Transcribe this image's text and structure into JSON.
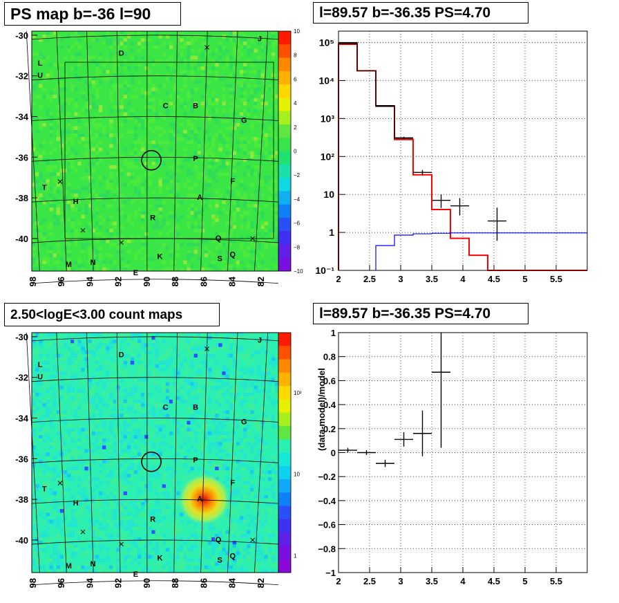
{
  "panels": {
    "ps_map_title": "PS map b=-36 l=90",
    "spectrum_title": "l=89.57 b=-36.35 PS=4.70",
    "count_map_title": "2.50<logE<3.00 count maps",
    "residual_title": "l=89.57 b=-36.35 PS=4.70"
  },
  "maps": {
    "x_ticks": [
      "98",
      "96",
      "94",
      "92",
      "90",
      "88",
      "86",
      "84",
      "82"
    ],
    "y_ticks": [
      "-30",
      "-32",
      "-34",
      "-36",
      "-38",
      "-40"
    ],
    "source_labels": [
      {
        "text": "D",
        "x": 91.8,
        "y": -31.0
      },
      {
        "text": "L",
        "x": 97.5,
        "y": -31.5
      },
      {
        "text": "U",
        "x": 97.5,
        "y": -32.1
      },
      {
        "text": "C",
        "x": 88.7,
        "y": -33.6
      },
      {
        "text": "B",
        "x": 86.6,
        "y": -33.6
      },
      {
        "text": "G",
        "x": 83.2,
        "y": -34.3
      },
      {
        "text": "J",
        "x": 82.1,
        "y": -30.3
      },
      {
        "text": "P",
        "x": 86.6,
        "y": -36.2
      },
      {
        "text": "T",
        "x": 97.2,
        "y": -37.6
      },
      {
        "text": "F",
        "x": 84.0,
        "y": -37.3
      },
      {
        "text": "H",
        "x": 95.0,
        "y": -38.3
      },
      {
        "text": "A",
        "x": 86.3,
        "y": -38.1
      },
      {
        "text": "R",
        "x": 89.6,
        "y": -39.1
      },
      {
        "text": "Q",
        "x": 85.0,
        "y": -40.1
      },
      {
        "text": "K",
        "x": 89.1,
        "y": -41.0
      },
      {
        "text": "S",
        "x": 84.9,
        "y": -41.1
      },
      {
        "text": "Q",
        "x": 84.0,
        "y": -40.9
      },
      {
        "text": "M",
        "x": 95.5,
        "y": -41.4
      },
      {
        "text": "N",
        "x": 93.8,
        "y": -41.3
      },
      {
        "text": "E",
        "x": 90.8,
        "y": -41.8
      }
    ],
    "cross_markers": [
      {
        "x": 85.8,
        "y": -30.6
      },
      {
        "x": 96.1,
        "y": -37.2
      },
      {
        "x": 94.5,
        "y": -39.6
      },
      {
        "x": 91.8,
        "y": -40.2
      },
      {
        "x": 82.6,
        "y": -40.0
      }
    ],
    "circle": {
      "x": 89.7,
      "y": -36.15
    },
    "ps_colorbar": {
      "ticks": [
        "10",
        "8",
        "6",
        "4",
        "2",
        "0",
        "−2",
        "−4",
        "−6",
        "−8",
        "−10"
      ],
      "range": [
        -10,
        10
      ]
    },
    "count_colorbar": {
      "ticks": [
        "10²",
        "10",
        "1"
      ],
      "scale": "log"
    }
  },
  "chart_data": [
    {
      "type": "histogram",
      "xlim": [
        2,
        6
      ],
      "ylim": [
        0.1,
        200000
      ],
      "yscale": "log",
      "grid": true,
      "x_ticks": [
        "2",
        "2.5",
        "3",
        "3.5",
        "4",
        "4.5",
        "5",
        "5.5"
      ],
      "y_ticks": [
        "10⁻¹",
        "1",
        "10",
        "10²",
        "10³",
        "10⁴",
        "10⁵"
      ],
      "series": [
        {
          "color": "#ff0000",
          "style": "step",
          "bins": [
            [
              2,
              2.3,
              90000
            ],
            [
              2.3,
              2.6,
              18000
            ],
            [
              2.6,
              2.9,
              2100
            ],
            [
              2.9,
              3.2,
              280
            ],
            [
              3.2,
              3.5,
              33
            ],
            [
              3.5,
              3.8,
              4
            ],
            [
              3.8,
              4.1,
              0.7
            ],
            [
              4.1,
              4.4,
              0.25
            ],
            [
              4.4,
              6,
              0.1
            ]
          ]
        },
        {
          "color": "#000000",
          "style": "step",
          "bins": [
            [
              2,
              2.3,
              100000
            ],
            [
              2.3,
              2.6,
              18000
            ],
            [
              2.6,
              2.9,
              2200
            ],
            [
              2.9,
              3.2,
              300
            ]
          ]
        },
        {
          "color": "#0000ff",
          "style": "step",
          "bins": [
            [
              2.6,
              2.9,
              0.45
            ],
            [
              2.9,
              3.2,
              0.85
            ],
            [
              3.2,
              3.5,
              0.92
            ],
            [
              3.5,
              3.8,
              0.95
            ],
            [
              3.8,
              6,
              0.97
            ]
          ]
        }
      ],
      "points": [
        {
          "x": 2.15,
          "xerr": 0.15,
          "y": 95000,
          "ylo": 94000,
          "yhi": 96000
        },
        {
          "x": 2.75,
          "xerr": 0.15,
          "y": 2100,
          "ylo": 2050,
          "yhi": 2150
        },
        {
          "x": 3.05,
          "xerr": 0.15,
          "y": 310,
          "ylo": 290,
          "yhi": 330
        },
        {
          "x": 3.35,
          "xerr": 0.15,
          "y": 38,
          "ylo": 32,
          "yhi": 44
        },
        {
          "x": 3.65,
          "xerr": 0.15,
          "y": 7,
          "ylo": 4.4,
          "yhi": 10
        },
        {
          "x": 3.95,
          "xerr": 0.15,
          "y": 5,
          "ylo": 2.8,
          "yhi": 8
        },
        {
          "x": 4.55,
          "xerr": 0.15,
          "y": 2,
          "ylo": 0.6,
          "yhi": 4.5
        }
      ]
    },
    {
      "type": "scatter",
      "xlim": [
        2,
        6
      ],
      "ylim": [
        -1,
        1
      ],
      "grid": true,
      "ylabel": "(data-model)/model",
      "x_ticks": [
        "2",
        "2.5",
        "3",
        "3.5",
        "4",
        "4.5",
        "5",
        "5.5"
      ],
      "y_ticks": [
        "1",
        "0.8",
        "0.6",
        "0.4",
        "0.2",
        "0",
        "−0.2",
        "−0.4",
        "−0.6",
        "−0.8",
        "−1"
      ],
      "points": [
        {
          "x": 2.15,
          "xerr": 0.15,
          "y": 0.02,
          "ylo": 0.0,
          "yhi": 0.04
        },
        {
          "x": 2.45,
          "xerr": 0.15,
          "y": 0.0,
          "ylo": -0.02,
          "yhi": 0.02
        },
        {
          "x": 2.75,
          "xerr": 0.15,
          "y": -0.09,
          "ylo": -0.12,
          "yhi": -0.06
        },
        {
          "x": 3.05,
          "xerr": 0.15,
          "y": 0.11,
          "ylo": 0.05,
          "yhi": 0.17
        },
        {
          "x": 3.35,
          "xerr": 0.15,
          "y": 0.16,
          "ylo": -0.03,
          "yhi": 0.35
        },
        {
          "x": 3.65,
          "xerr": 0.15,
          "y": 0.67,
          "ylo": 0.04,
          "yhi": 1.0
        }
      ]
    }
  ],
  "colors": {
    "map_base": "#38e44a",
    "count_base": "#27f0b8",
    "hist_red": "#ff0000",
    "hist_blue": "#0000ff"
  }
}
